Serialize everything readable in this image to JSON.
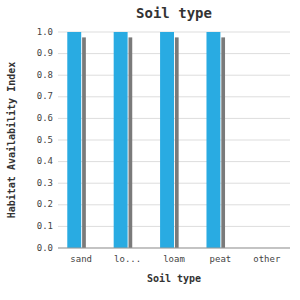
{
  "chart_data": {
    "type": "bar",
    "title": "Soil type",
    "xlabel": "Soil type",
    "ylabel": "Habitat Availability Index",
    "categories": [
      "sand",
      "lo...",
      "loam",
      "peat",
      "other"
    ],
    "series": [
      {
        "color": "#29abe2",
        "values": [
          1.0,
          1.0,
          1.0,
          1.0,
          0.0
        ]
      },
      {
        "color": "#7a7a7a",
        "values": [
          0.975,
          0.975,
          0.975,
          0.975,
          0.0
        ]
      }
    ],
    "ylim": [
      0.0,
      1.0
    ],
    "yticks": [
      {
        "value": 0.0,
        "label": "0.0"
      },
      0.1,
      0.2,
      0.3,
      0.4,
      0.5,
      0.6,
      0.7,
      0.8,
      0.9,
      {
        "value": 1.0,
        "label": "1.0"
      }
    ],
    "grid": true
  }
}
